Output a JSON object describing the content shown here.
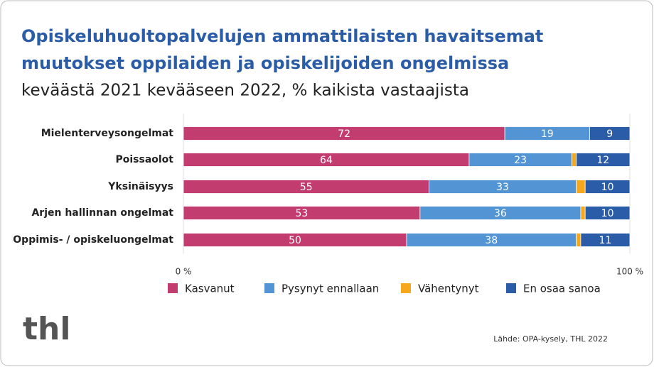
{
  "chart_data": {
    "type": "stacked-bar-horizontal",
    "title": [
      "Opiskeluhuoltopalvelujen ammattilaisten havaitsemat",
      "muutokset oppilaiden ja opiskelijoiden ongelmissa"
    ],
    "subtitle": "keväästä 2021 kevääseen 2022, % kaikista vastaajista",
    "categories": [
      "Mielenterveysongelmat",
      "Poissaolot",
      "Yksinäisyys",
      "Arjen hallinnan ongelmat",
      "Oppimis- / opiskeluongelmat"
    ],
    "series": [
      {
        "name": "Kasvanut",
        "color": "#c23c6f",
        "values": [
          72,
          64,
          55,
          53,
          50
        ]
      },
      {
        "name": "Pysynyt ennallaan",
        "color": "#5395d4",
        "values": [
          19,
          23,
          33,
          36,
          38
        ]
      },
      {
        "name": "Vähentynyt",
        "color": "#f6a81c",
        "values": [
          0,
          1,
          2,
          1,
          1
        ]
      },
      {
        "name": "En osaa sanoa",
        "color": "#2b5ca8",
        "values": [
          9,
          12,
          10,
          10,
          11
        ]
      }
    ],
    "xlim": [
      0,
      100
    ],
    "xticks": [
      {
        "value": 0,
        "label": "0 %"
      },
      {
        "value": 100,
        "label": "100 %"
      }
    ],
    "grid": true,
    "legend": "bottom",
    "logo": "thl",
    "source": "Lähde: OPA-kysely, THL 2022"
  }
}
